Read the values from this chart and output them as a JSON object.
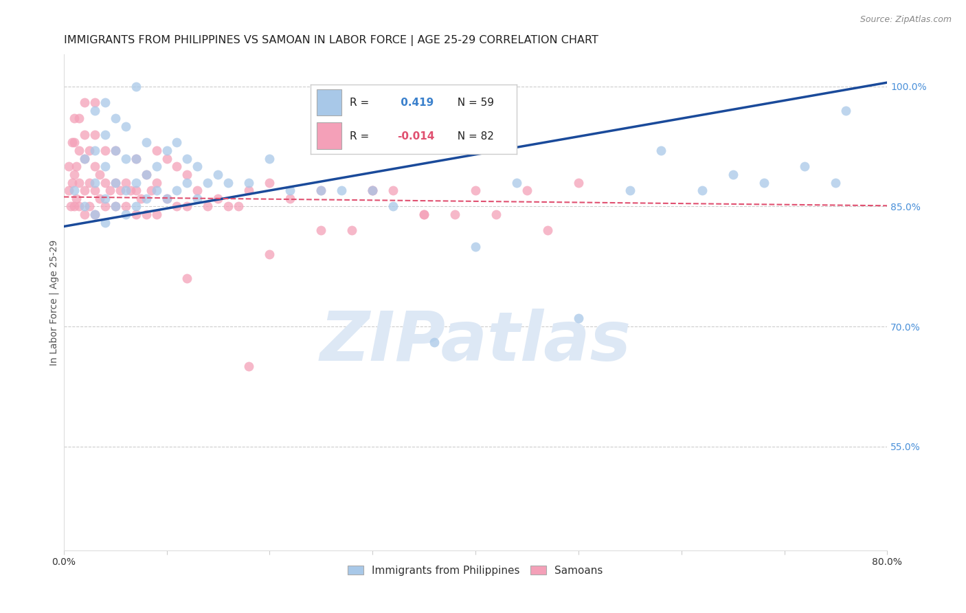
{
  "title": "IMMIGRANTS FROM PHILIPPINES VS SAMOAN IN LABOR FORCE | AGE 25-29 CORRELATION CHART",
  "source": "Source: ZipAtlas.com",
  "ylabel": "In Labor Force | Age 25-29",
  "xlim": [
    0.0,
    0.8
  ],
  "ylim": [
    0.42,
    1.04
  ],
  "xtick_positions": [
    0.0,
    0.1,
    0.2,
    0.3,
    0.4,
    0.5,
    0.6,
    0.7,
    0.8
  ],
  "xticklabels": [
    "0.0%",
    "",
    "",
    "",
    "",
    "",
    "",
    "",
    "80.0%"
  ],
  "yticks": [
    0.55,
    0.7,
    0.85,
    1.0
  ],
  "yticklabels": [
    "55.0%",
    "70.0%",
    "85.0%",
    "100.0%"
  ],
  "r_blue": 0.419,
  "n_blue": 59,
  "r_pink": -0.014,
  "n_pink": 82,
  "blue_color": "#a8c8e8",
  "pink_color": "#f4a0b8",
  "trendline_blue_color": "#1a4a9a",
  "trendline_pink_color": "#e05070",
  "blue_scatter_x": [
    0.01,
    0.02,
    0.02,
    0.03,
    0.03,
    0.03,
    0.03,
    0.04,
    0.04,
    0.04,
    0.04,
    0.04,
    0.05,
    0.05,
    0.05,
    0.05,
    0.06,
    0.06,
    0.06,
    0.06,
    0.07,
    0.07,
    0.07,
    0.07,
    0.08,
    0.08,
    0.08,
    0.09,
    0.09,
    0.1,
    0.1,
    0.11,
    0.11,
    0.12,
    0.12,
    0.13,
    0.13,
    0.14,
    0.15,
    0.16,
    0.18,
    0.2,
    0.22,
    0.25,
    0.27,
    0.3,
    0.32,
    0.36,
    0.4,
    0.44,
    0.5,
    0.55,
    0.58,
    0.62,
    0.65,
    0.68,
    0.72,
    0.75,
    0.76
  ],
  "blue_scatter_y": [
    0.87,
    0.85,
    0.91,
    0.84,
    0.88,
    0.92,
    0.97,
    0.83,
    0.86,
    0.9,
    0.94,
    0.98,
    0.85,
    0.88,
    0.92,
    0.96,
    0.84,
    0.87,
    0.91,
    0.95,
    0.85,
    0.88,
    0.91,
    1.0,
    0.86,
    0.89,
    0.93,
    0.87,
    0.9,
    0.86,
    0.92,
    0.87,
    0.93,
    0.88,
    0.91,
    0.86,
    0.9,
    0.88,
    0.89,
    0.88,
    0.88,
    0.91,
    0.87,
    0.87,
    0.87,
    0.87,
    0.85,
    0.68,
    0.8,
    0.88,
    0.71,
    0.87,
    0.92,
    0.87,
    0.89,
    0.88,
    0.9,
    0.88,
    0.97
  ],
  "pink_scatter_x": [
    0.005,
    0.005,
    0.007,
    0.008,
    0.008,
    0.01,
    0.01,
    0.01,
    0.01,
    0.012,
    0.012,
    0.015,
    0.015,
    0.015,
    0.015,
    0.02,
    0.02,
    0.02,
    0.02,
    0.02,
    0.025,
    0.025,
    0.025,
    0.03,
    0.03,
    0.03,
    0.03,
    0.03,
    0.035,
    0.035,
    0.04,
    0.04,
    0.04,
    0.045,
    0.05,
    0.05,
    0.05,
    0.055,
    0.06,
    0.06,
    0.065,
    0.07,
    0.07,
    0.07,
    0.075,
    0.08,
    0.08,
    0.085,
    0.09,
    0.09,
    0.09,
    0.1,
    0.1,
    0.11,
    0.11,
    0.12,
    0.12,
    0.13,
    0.14,
    0.15,
    0.16,
    0.17,
    0.18,
    0.2,
    0.22,
    0.25,
    0.3,
    0.35,
    0.4,
    0.45,
    0.5,
    0.12,
    0.28,
    0.32,
    0.38,
    0.2,
    0.35,
    0.3,
    0.25,
    0.18,
    0.42,
    0.47
  ],
  "pink_scatter_y": [
    0.87,
    0.9,
    0.85,
    0.88,
    0.93,
    0.85,
    0.89,
    0.93,
    0.96,
    0.86,
    0.9,
    0.85,
    0.88,
    0.92,
    0.96,
    0.84,
    0.87,
    0.91,
    0.94,
    0.98,
    0.85,
    0.88,
    0.92,
    0.84,
    0.87,
    0.9,
    0.94,
    0.98,
    0.86,
    0.89,
    0.85,
    0.88,
    0.92,
    0.87,
    0.85,
    0.88,
    0.92,
    0.87,
    0.85,
    0.88,
    0.87,
    0.84,
    0.87,
    0.91,
    0.86,
    0.84,
    0.89,
    0.87,
    0.84,
    0.88,
    0.92,
    0.86,
    0.91,
    0.85,
    0.9,
    0.85,
    0.89,
    0.87,
    0.85,
    0.86,
    0.85,
    0.85,
    0.87,
    0.88,
    0.86,
    0.87,
    0.87,
    0.84,
    0.87,
    0.87,
    0.88,
    0.76,
    0.82,
    0.87,
    0.84,
    0.79,
    0.84,
    0.87,
    0.82,
    0.65,
    0.84,
    0.82
  ],
  "blue_trendline_x": [
    0.0,
    0.8
  ],
  "blue_trendline_y": [
    0.825,
    1.005
  ],
  "pink_trendline_x": [
    0.0,
    0.8
  ],
  "pink_trendline_y": [
    0.862,
    0.851
  ],
  "background_color": "#ffffff",
  "title_fontsize": 11.5,
  "label_fontsize": 10,
  "tick_fontsize": 10,
  "watermark_text": "ZIPatlas",
  "watermark_color": "#dde8f5"
}
